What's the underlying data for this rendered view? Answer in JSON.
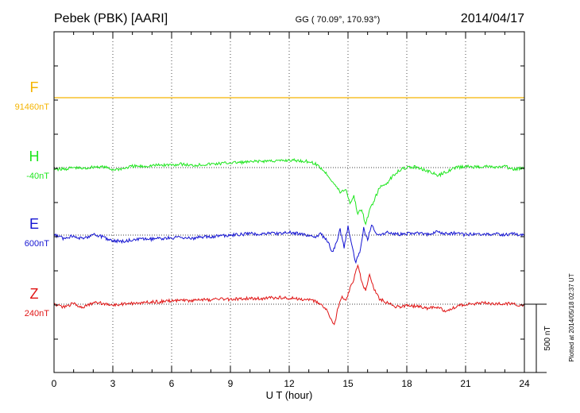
{
  "header": {
    "station": "Pebek (PBK)  [AARI]",
    "coords": "GG ( 70.09°, 170.93°)",
    "date": "2014/04/17"
  },
  "footer_note": "Plotted at 2014/05/18 02:37 UT",
  "scale_label": "500 nT",
  "colors": {
    "F": "#f5b400",
    "H": "#1ee61e",
    "E": "#1414d2",
    "Z": "#e01414",
    "axis": "#000000",
    "grid": "#000000"
  },
  "chart_data": {
    "type": "line",
    "xlabel": "U T (hour)",
    "xlim": [
      0,
      24
    ],
    "xticks": [
      "0",
      "3",
      "6",
      "9",
      "12",
      "15",
      "18",
      "21",
      "24"
    ],
    "grid": true,
    "scale_bar_nT": 500,
    "series": [
      {
        "name": "F",
        "baseline_label": "91460nT",
        "x": [
          0,
          24
        ],
        "y": [
          0,
          0
        ]
      },
      {
        "name": "H",
        "baseline_label": "-40nT",
        "x": [
          0,
          0.5,
          1,
          1.5,
          2,
          2.5,
          3,
          3.5,
          4,
          4.5,
          5,
          5.5,
          6,
          6.5,
          7,
          7.5,
          8,
          8.5,
          9,
          9.5,
          10,
          10.5,
          11,
          11.5,
          12,
          12.5,
          13,
          13.3,
          13.6,
          14,
          14.3,
          14.6,
          14.9,
          15.1,
          15.3,
          15.5,
          15.7,
          15.9,
          16.1,
          16.3,
          16.6,
          17,
          17.3,
          17.6,
          18,
          18.5,
          19,
          19.3,
          19.6,
          20,
          20.5,
          21,
          21.5,
          22,
          22.5,
          23,
          23.5,
          24
        ],
        "y": [
          -10,
          -12,
          0,
          -8,
          5,
          6,
          -15,
          -8,
          10,
          8,
          15,
          18,
          20,
          25,
          15,
          22,
          25,
          30,
          35,
          38,
          40,
          45,
          50,
          48,
          55,
          50,
          45,
          30,
          0,
          -60,
          -120,
          -180,
          -160,
          -260,
          -210,
          -340,
          -300,
          -420,
          -310,
          -250,
          -150,
          -110,
          -60,
          -20,
          0,
          5,
          -20,
          -40,
          -60,
          -30,
          0,
          8,
          5,
          10,
          0,
          8,
          -15,
          0
        ]
      },
      {
        "name": "E",
        "baseline_label": "600nT",
        "x": [
          0,
          0.5,
          1,
          1.5,
          2,
          2.5,
          3,
          3.5,
          4,
          4.5,
          5,
          5.5,
          6,
          6.5,
          7,
          7.5,
          8,
          8.5,
          9,
          9.5,
          10,
          10.5,
          11,
          11.5,
          12,
          12.5,
          13,
          13.3,
          13.6,
          14,
          14.2,
          14.4,
          14.6,
          14.8,
          15,
          15.2,
          15.4,
          15.6,
          15.8,
          16,
          16.2,
          16.5,
          17,
          17.5,
          18,
          18.5,
          19,
          19.5,
          20,
          20.5,
          21,
          21.5,
          22,
          22.5,
          23,
          23.5,
          24
        ],
        "y": [
          0,
          -25,
          -5,
          -30,
          10,
          -15,
          -40,
          -45,
          -35,
          -30,
          -30,
          -25,
          -20,
          -15,
          -25,
          -15,
          -10,
          -5,
          0,
          5,
          10,
          5,
          15,
          10,
          20,
          10,
          -5,
          -15,
          10,
          -50,
          -130,
          -60,
          40,
          -90,
          60,
          -80,
          -200,
          -120,
          50,
          -40,
          80,
          0,
          20,
          5,
          10,
          15,
          5,
          25,
          10,
          15,
          0,
          10,
          5,
          10,
          0,
          10,
          -5
        ]
      },
      {
        "name": "Z",
        "baseline_label": "240nT",
        "x": [
          0,
          0.5,
          1,
          1.5,
          2,
          2.5,
          3,
          3.5,
          4,
          4.5,
          5,
          5.5,
          6,
          6.5,
          7,
          7.5,
          8,
          8.5,
          9,
          9.5,
          10,
          10.5,
          11,
          11.5,
          12,
          12.5,
          13,
          13.3,
          13.6,
          13.9,
          14.1,
          14.3,
          14.5,
          14.7,
          14.9,
          15.1,
          15.3,
          15.5,
          15.7,
          15.9,
          16.1,
          16.3,
          16.6,
          17,
          17.5,
          18,
          18.5,
          19,
          19.5,
          20,
          20.5,
          21,
          21.5,
          22,
          22.5,
          23,
          23.5,
          24
        ],
        "y": [
          0,
          -20,
          5,
          -25,
          10,
          5,
          -5,
          0,
          5,
          10,
          15,
          20,
          25,
          30,
          25,
          35,
          30,
          40,
          35,
          40,
          45,
          40,
          45,
          50,
          45,
          40,
          30,
          20,
          0,
          -40,
          -110,
          -160,
          -20,
          50,
          20,
          120,
          180,
          290,
          160,
          100,
          230,
          120,
          40,
          10,
          -20,
          -10,
          -15,
          -30,
          -20,
          -50,
          -20,
          0,
          5,
          10,
          0,
          5,
          0,
          -10
        ]
      }
    ]
  }
}
